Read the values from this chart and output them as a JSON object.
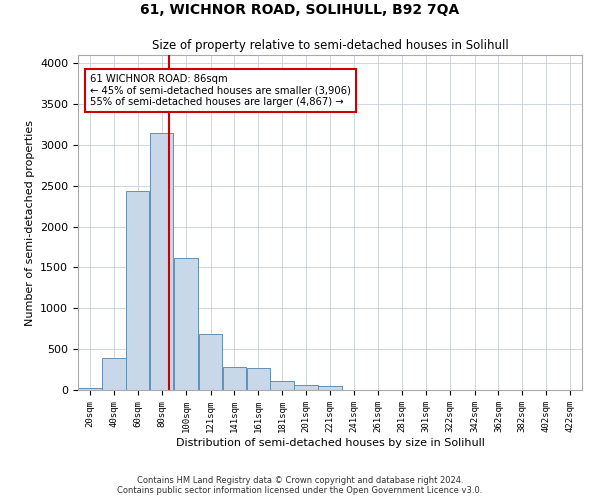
{
  "title": "61, WICHNOR ROAD, SOLIHULL, B92 7QA",
  "subtitle": "Size of property relative to semi-detached houses in Solihull",
  "xlabel": "Distribution of semi-detached houses by size in Solihull",
  "ylabel": "Number of semi-detached properties",
  "footer_line1": "Contains HM Land Registry data © Crown copyright and database right 2024.",
  "footer_line2": "Contains public sector information licensed under the Open Government Licence v3.0.",
  "annotation_title": "61 WICHNOR ROAD: 86sqm",
  "annotation_line1": "← 45% of semi-detached houses are smaller (3,906)",
  "annotation_line2": "55% of semi-detached houses are larger (4,867) →",
  "subject_size": 86,
  "bar_color": "#c8d8e8",
  "bar_edge_color": "#6090b8",
  "subject_line_color": "#cc0000",
  "annotation_box_color": "#cc0000",
  "background_color": "#ffffff",
  "grid_color": "#c8d0dc",
  "categories": [
    "20sqm",
    "40sqm",
    "60sqm",
    "80sqm",
    "100sqm",
    "121sqm",
    "141sqm",
    "161sqm",
    "181sqm",
    "201sqm",
    "221sqm",
    "241sqm",
    "261sqm",
    "281sqm",
    "301sqm",
    "322sqm",
    "342sqm",
    "362sqm",
    "382sqm",
    "402sqm",
    "422sqm"
  ],
  "bin_edges": [
    10,
    30,
    50,
    70,
    90,
    111,
    131,
    151,
    171,
    191,
    211,
    231,
    251,
    271,
    291,
    311,
    332,
    352,
    372,
    392,
    412,
    432
  ],
  "values": [
    30,
    390,
    2430,
    3150,
    1620,
    690,
    280,
    270,
    110,
    65,
    55,
    0,
    0,
    0,
    0,
    0,
    0,
    0,
    0,
    0,
    0
  ],
  "ylim": [
    0,
    4100
  ],
  "yticks": [
    0,
    500,
    1000,
    1500,
    2000,
    2500,
    3000,
    3500,
    4000
  ]
}
